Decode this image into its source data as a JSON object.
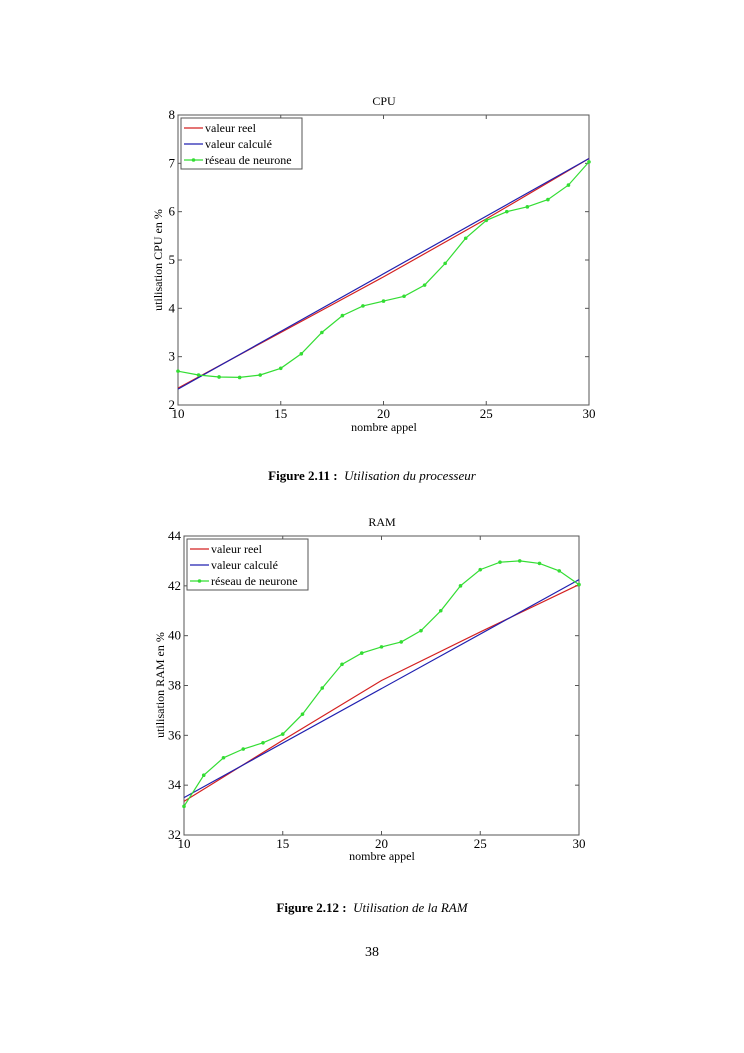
{
  "page_number": "38",
  "figures": [
    {
      "label": "Figure 2.11 :",
      "caption": "Utilisation du processeur"
    },
    {
      "label": "Figure 2.12 :",
      "caption": "Utilisation de la RAM"
    }
  ],
  "colors": {
    "real": "#d42020",
    "calc": "#2020b0",
    "nn": "#33dd33",
    "axis": "#555555"
  },
  "chart_data": [
    {
      "type": "line",
      "title": "CPU",
      "xlabel": "nombre appel",
      "ylabel": "utilisation CPU en %",
      "xlim": [
        10,
        30
      ],
      "ylim": [
        2,
        8
      ],
      "xticks": [
        10,
        15,
        20,
        25,
        30
      ],
      "yticks": [
        2,
        3,
        4,
        5,
        6,
        7,
        8
      ],
      "grid": false,
      "legend_position": "top-left",
      "series": [
        {
          "name": "valeur reel",
          "color_key": "real",
          "markers": false,
          "x": [
            10,
            15,
            20,
            25,
            30
          ],
          "y": [
            2.35,
            3.5,
            4.65,
            5.85,
            7.1
          ]
        },
        {
          "name": "valeur calculé",
          "color_key": "calc",
          "markers": false,
          "x": [
            10,
            30
          ],
          "y": [
            2.33,
            7.1
          ]
        },
        {
          "name": "réseau de neurone",
          "color_key": "nn",
          "markers": true,
          "x": [
            10,
            11,
            12,
            13,
            14,
            15,
            16,
            17,
            18,
            19,
            20,
            21,
            22,
            23,
            24,
            25,
            26,
            27,
            28,
            29,
            30
          ],
          "y": [
            2.7,
            2.62,
            2.58,
            2.57,
            2.62,
            2.76,
            3.06,
            3.5,
            3.85,
            4.05,
            4.15,
            4.25,
            4.48,
            4.93,
            5.45,
            5.82,
            6.0,
            6.1,
            6.25,
            6.55,
            7.03
          ]
        }
      ]
    },
    {
      "type": "line",
      "title": "RAM",
      "xlabel": "nombre appel",
      "ylabel": "utilisation RAM en %",
      "xlim": [
        10,
        30
      ],
      "ylim": [
        32,
        44
      ],
      "xticks": [
        10,
        15,
        20,
        25,
        30
      ],
      "yticks": [
        32,
        34,
        36,
        38,
        40,
        42,
        44
      ],
      "grid": false,
      "legend_position": "top-left",
      "series": [
        {
          "name": "valeur reel",
          "color_key": "real",
          "markers": false,
          "x": [
            10,
            15,
            20,
            25,
            30
          ],
          "y": [
            33.35,
            35.8,
            38.2,
            40.15,
            42.05
          ]
        },
        {
          "name": "valeur calculé",
          "color_key": "calc",
          "markers": false,
          "x": [
            10,
            30
          ],
          "y": [
            33.5,
            42.25
          ]
        },
        {
          "name": "réseau de neurone",
          "color_key": "nn",
          "markers": true,
          "x": [
            10,
            11,
            12,
            13,
            14,
            15,
            16,
            17,
            18,
            19,
            20,
            21,
            22,
            23,
            24,
            25,
            26,
            27,
            28,
            29,
            30
          ],
          "y": [
            33.15,
            34.4,
            35.1,
            35.45,
            35.7,
            36.05,
            36.85,
            37.9,
            38.85,
            39.3,
            39.55,
            39.75,
            40.2,
            41.0,
            42.0,
            42.65,
            42.95,
            43.0,
            42.9,
            42.6,
            42.05
          ]
        }
      ]
    }
  ]
}
